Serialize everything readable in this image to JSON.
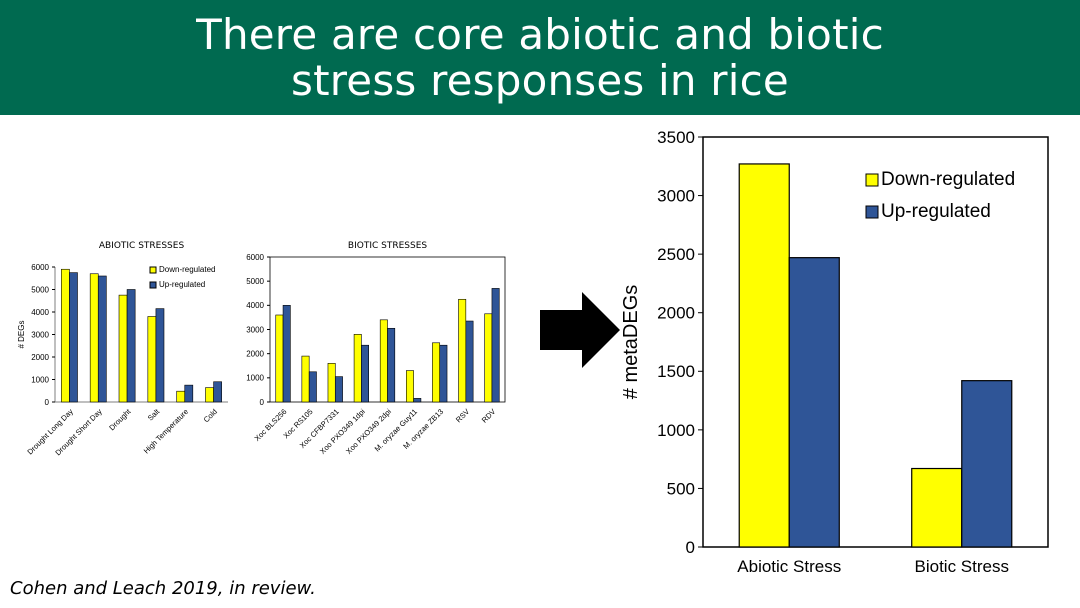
{
  "slide": {
    "title": "There are core abiotic and biotic\nstress responses in rice",
    "citation": "Cohen and Leach 2019, in review.",
    "arrow_icon": "right-arrow-icon"
  },
  "colors": {
    "band": "#006a50",
    "down": "#ffff00",
    "up": "#2f5597"
  },
  "chart_data": [
    {
      "type": "bar",
      "title": "ABIOTIC STRESSES",
      "ylabel": "# DEGs",
      "xlabel": "",
      "ylim": [
        0,
        6000
      ],
      "yticks": [
        0,
        1000,
        2000,
        3000,
        4000,
        5000,
        6000
      ],
      "categories": [
        "Drought Long Day",
        "Drought Short Day",
        "Drought",
        "Salt",
        "High Temperature",
        "Cold"
      ],
      "series": [
        {
          "name": "Down-regulated",
          "values": [
            5900,
            5700,
            4750,
            3800,
            480,
            640
          ]
        },
        {
          "name": "Up-regulated",
          "values": [
            5750,
            5600,
            5000,
            4150,
            750,
            900
          ]
        }
      ],
      "legend": "top-right",
      "grid": false
    },
    {
      "type": "bar",
      "title": "BIOTIC STRESSES",
      "ylabel": "",
      "xlabel": "",
      "ylim": [
        0,
        6000
      ],
      "yticks": [
        0,
        1000,
        2000,
        3000,
        4000,
        5000,
        6000
      ],
      "categories": [
        "Xoc BLS256",
        "Xoc RS105",
        "Xoc CFBP7331",
        "Xoo PXO349 1dpi",
        "Xoo PXO349 2dpi",
        "M. oryzae Guy11",
        "M. oryzae ZB13",
        "RSV",
        "RDV"
      ],
      "series": [
        {
          "name": "Down-regulated",
          "values": [
            3600,
            1900,
            1600,
            2800,
            3400,
            1300,
            2450,
            4250,
            3650
          ]
        },
        {
          "name": "Up-regulated",
          "values": [
            4000,
            1250,
            1050,
            2350,
            3050,
            150,
            2350,
            3350,
            4700
          ]
        }
      ],
      "legend": "none",
      "grid": false
    },
    {
      "type": "bar",
      "title": "",
      "ylabel": "# metaDEGs",
      "xlabel": "",
      "ylim": [
        0,
        3500
      ],
      "yticks": [
        0,
        500,
        1000,
        1500,
        2000,
        2500,
        3000,
        3500
      ],
      "categories": [
        "Abiotic Stress",
        "Biotic Stress"
      ],
      "series": [
        {
          "name": "Down-regulated",
          "values": [
            3270,
            670
          ]
        },
        {
          "name": "Up-regulated",
          "values": [
            2470,
            1420
          ]
        }
      ],
      "legend": "top-right",
      "grid": false
    }
  ]
}
